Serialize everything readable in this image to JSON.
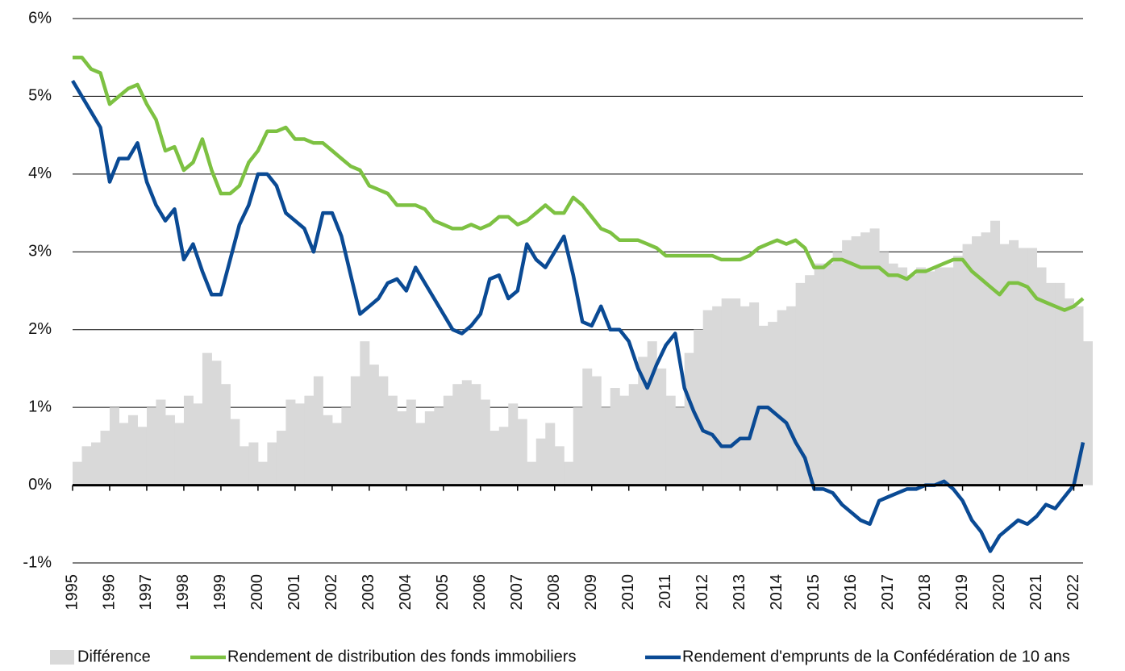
{
  "chart_data": {
    "type": "line",
    "x": [
      1995,
      1995.25,
      1995.5,
      1995.75,
      1996,
      1996.25,
      1996.5,
      1996.75,
      1997,
      1997.25,
      1997.5,
      1997.75,
      1998,
      1998.25,
      1998.5,
      1998.75,
      1999,
      1999.25,
      1999.5,
      1999.75,
      2000,
      2000.25,
      2000.5,
      2000.75,
      2001,
      2001.25,
      2001.5,
      2001.75,
      2002,
      2002.25,
      2002.5,
      2002.75,
      2003,
      2003.25,
      2003.5,
      2003.75,
      2004,
      2004.25,
      2004.5,
      2004.75,
      2005,
      2005.25,
      2005.5,
      2005.75,
      2006,
      2006.25,
      2006.5,
      2006.75,
      2007,
      2007.25,
      2007.5,
      2007.75,
      2008,
      2008.25,
      2008.5,
      2008.75,
      2009,
      2009.25,
      2009.5,
      2009.75,
      2010,
      2010.25,
      2010.5,
      2010.75,
      2011,
      2011.25,
      2011.5,
      2011.75,
      2012,
      2012.25,
      2012.5,
      2012.75,
      2013,
      2013.25,
      2013.5,
      2013.75,
      2014,
      2014.25,
      2014.5,
      2014.75,
      2015,
      2015.25,
      2015.5,
      2015.75,
      2016,
      2016.25,
      2016.5,
      2016.75,
      2017,
      2017.25,
      2017.5,
      2017.75,
      2018,
      2018.25,
      2018.5,
      2018.75,
      2019,
      2019.25,
      2019.5,
      2019.75,
      2020,
      2020.25,
      2020.5,
      2020.75,
      2021,
      2021.25,
      2021.5,
      2021.75,
      2022,
      2022.25
    ],
    "series": [
      {
        "name": "Différence",
        "type": "bar",
        "color": "#d9d9d9",
        "values": [
          0.3,
          0.5,
          0.55,
          0.7,
          1.0,
          0.8,
          0.9,
          0.75,
          1.0,
          1.1,
          0.9,
          0.8,
          1.15,
          1.05,
          1.7,
          1.6,
          1.3,
          0.85,
          0.5,
          0.55,
          0.3,
          0.55,
          0.7,
          1.1,
          1.05,
          1.15,
          1.4,
          0.9,
          0.8,
          1.0,
          1.4,
          1.85,
          1.55,
          1.4,
          1.15,
          0.95,
          1.1,
          0.8,
          0.95,
          1.0,
          1.15,
          1.3,
          1.35,
          1.3,
          1.1,
          0.7,
          0.75,
          1.05,
          0.85,
          0.3,
          0.6,
          0.8,
          0.5,
          0.3,
          1.0,
          1.5,
          1.4,
          1.0,
          1.25,
          1.15,
          1.3,
          1.65,
          1.85,
          1.5,
          1.15,
          1.0,
          1.7,
          2.0,
          2.25,
          2.3,
          2.4,
          2.4,
          2.3,
          2.35,
          2.05,
          2.1,
          2.25,
          2.3,
          2.6,
          2.7,
          2.85,
          2.85,
          3.0,
          3.15,
          3.2,
          3.25,
          3.3,
          3.0,
          2.85,
          2.8,
          2.7,
          2.8,
          2.75,
          2.8,
          2.8,
          2.95,
          3.1,
          3.2,
          3.25,
          3.4,
          3.1,
          3.15,
          3.05,
          3.05,
          2.8,
          2.6,
          2.6,
          2.4,
          2.3,
          1.85
        ]
      },
      {
        "name": "Rendement de distribution des fonds immobiliers",
        "type": "line",
        "color": "#7dc142",
        "values": [
          5.5,
          5.5,
          5.35,
          5.3,
          4.9,
          5.0,
          5.1,
          5.15,
          4.9,
          4.7,
          4.3,
          4.35,
          4.05,
          4.15,
          4.45,
          4.05,
          3.75,
          3.75,
          3.85,
          4.15,
          4.3,
          4.55,
          4.55,
          4.6,
          4.45,
          4.45,
          4.4,
          4.4,
          4.3,
          4.2,
          4.1,
          4.05,
          3.85,
          3.8,
          3.75,
          3.6,
          3.6,
          3.6,
          3.55,
          3.4,
          3.35,
          3.3,
          3.3,
          3.35,
          3.3,
          3.35,
          3.45,
          3.45,
          3.35,
          3.4,
          3.5,
          3.6,
          3.5,
          3.5,
          3.7,
          3.6,
          3.45,
          3.3,
          3.25,
          3.15,
          3.15,
          3.15,
          3.1,
          3.05,
          2.95,
          2.95,
          2.95,
          2.95,
          2.95,
          2.95,
          2.9,
          2.9,
          2.9,
          2.95,
          3.05,
          3.1,
          3.15,
          3.1,
          3.15,
          3.05,
          2.8,
          2.8,
          2.9,
          2.9,
          2.85,
          2.8,
          2.8,
          2.8,
          2.7,
          2.7,
          2.65,
          2.75,
          2.75,
          2.8,
          2.85,
          2.9,
          2.9,
          2.75,
          2.65,
          2.55,
          2.45,
          2.6,
          2.6,
          2.55,
          2.4,
          2.35,
          2.3,
          2.25,
          2.3,
          2.4
        ]
      },
      {
        "name": "Rendement d'emprunts de la Confédération de 10 ans",
        "type": "line",
        "color": "#0a4a94",
        "values": [
          5.2,
          5.0,
          4.8,
          4.6,
          3.9,
          4.2,
          4.2,
          4.4,
          3.9,
          3.6,
          3.4,
          3.55,
          2.9,
          3.1,
          2.75,
          2.45,
          2.45,
          2.9,
          3.35,
          3.6,
          4.0,
          4.0,
          3.85,
          3.5,
          3.4,
          3.3,
          3.0,
          3.5,
          3.5,
          3.2,
          2.7,
          2.2,
          2.3,
          2.4,
          2.6,
          2.65,
          2.5,
          2.8,
          2.6,
          2.4,
          2.2,
          2.0,
          1.95,
          2.05,
          2.2,
          2.65,
          2.7,
          2.4,
          2.5,
          3.1,
          2.9,
          2.8,
          3.0,
          3.2,
          2.7,
          2.1,
          2.05,
          2.3,
          2.0,
          2.0,
          1.85,
          1.5,
          1.25,
          1.55,
          1.8,
          1.95,
          1.25,
          0.95,
          0.7,
          0.65,
          0.5,
          0.5,
          0.6,
          0.6,
          1.0,
          1.0,
          0.9,
          0.8,
          0.55,
          0.35,
          -0.05,
          -0.05,
          -0.1,
          -0.25,
          -0.35,
          -0.45,
          -0.5,
          -0.2,
          -0.15,
          -0.1,
          -0.05,
          -0.05,
          0.0,
          0.0,
          0.05,
          -0.05,
          -0.2,
          -0.45,
          -0.6,
          -0.85,
          -0.65,
          -0.55,
          -0.45,
          -0.5,
          -0.4,
          -0.25,
          -0.3,
          -0.15,
          0.0,
          0.55
        ]
      }
    ],
    "xlim": [
      1995,
      2022.25
    ],
    "xticks": [
      1995,
      1996,
      1997,
      1998,
      1999,
      2000,
      2001,
      2002,
      2003,
      2004,
      2005,
      2006,
      2007,
      2008,
      2009,
      2010,
      2011,
      2012,
      2013,
      2014,
      2015,
      2016,
      2017,
      2018,
      2019,
      2020,
      2021,
      2022
    ],
    "ylim": [
      -1,
      6
    ],
    "yticks": [
      {
        "value": -1,
        "label": "-1%"
      },
      {
        "value": 0,
        "label": "0%"
      },
      {
        "value": 1,
        "label": "1%"
      },
      {
        "value": 2,
        "label": "2%"
      },
      {
        "value": 3,
        "label": "3%"
      },
      {
        "value": 4,
        "label": "4%"
      },
      {
        "value": 5,
        "label": "5%"
      },
      {
        "value": 6,
        "label": "6%"
      }
    ],
    "grid": true,
    "legend": "bottom"
  }
}
